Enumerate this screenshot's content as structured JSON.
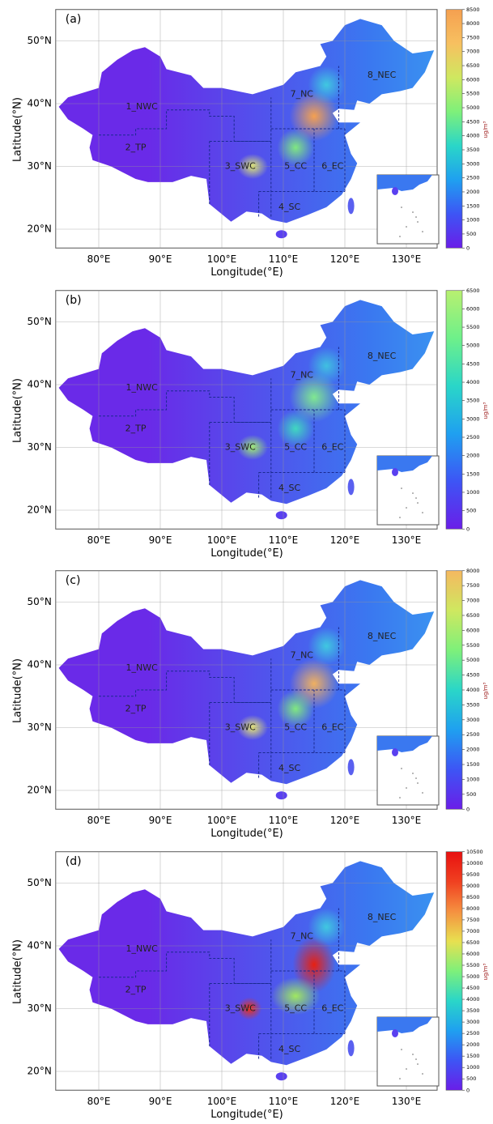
{
  "panels": [
    {
      "label": "(a)",
      "colorbar_ticks": [
        0,
        500,
        1000,
        1500,
        2000,
        2500,
        3000,
        3500,
        4000,
        4500,
        5000,
        5500,
        6000,
        6500,
        7000,
        7500,
        8000,
        8500
      ]
    },
    {
      "label": "(b)",
      "colorbar_ticks": [
        0,
        500,
        1000,
        1500,
        2000,
        2500,
        3000,
        3500,
        4000,
        4500,
        5000,
        5500,
        6000,
        6500
      ]
    },
    {
      "label": "(c)",
      "colorbar_ticks": [
        0,
        500,
        1000,
        1500,
        2000,
        2500,
        3000,
        3500,
        4000,
        4500,
        5000,
        5500,
        6000,
        6500,
        7000,
        7500,
        8000
      ]
    },
    {
      "label": "(d)",
      "colorbar_ticks": [
        0,
        500,
        1000,
        1500,
        2000,
        2500,
        3000,
        3500,
        4000,
        4500,
        5000,
        5500,
        6000,
        6500,
        7000,
        7500,
        8000,
        8500,
        9000,
        9500,
        10000,
        10500
      ]
    }
  ],
  "regions": [
    "1_NWC",
    "2_TP",
    "3_SWC",
    "4_SC",
    "5_CC",
    "6_EC",
    "7_NC",
    "8_NEC"
  ],
  "x_label": "Longitude(°E)",
  "y_label": "Latitude(°N)",
  "lon_ticks": [
    "80°E",
    "90°E",
    "100°E",
    "110°E",
    "120°E",
    "130°E"
  ],
  "lat_ticks": [
    "20°N",
    "30°N",
    "40°N",
    "50°N"
  ],
  "unit": "ug/m³"
}
